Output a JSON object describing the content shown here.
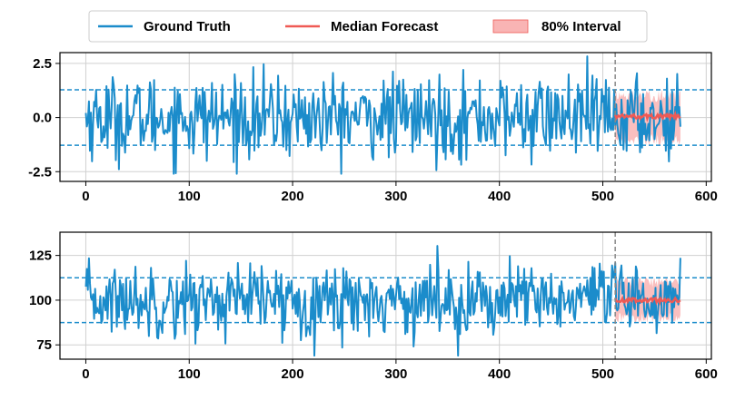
{
  "colors": {
    "ground_truth": "#1b8ccb",
    "median": "#ef5a55",
    "interval_fill": "#f9b4b4",
    "grid": "#d0d0d0",
    "cutoff": "#888888",
    "frame": "#000000"
  },
  "legend": {
    "placement": "top-center",
    "items": [
      {
        "label": "Ground Truth",
        "kind": "line",
        "color": "#1b8ccb"
      },
      {
        "label": "Median Forecast",
        "kind": "line",
        "color": "#ef5a55"
      },
      {
        "label": "80% Interval",
        "kind": "patch",
        "color": "#f9b4b4"
      }
    ]
  },
  "chart_data": [
    {
      "type": "line",
      "title": "",
      "xlabel": "",
      "ylabel": "",
      "xlim": [
        -25,
        605
      ],
      "ylim": [
        -2.95,
        3.0
      ],
      "xticks": [
        0,
        100,
        200,
        300,
        400,
        500,
        600
      ],
      "xtick_labels": [
        "0",
        "100",
        "200",
        "300",
        "400",
        "500",
        "600"
      ],
      "yticks": [
        -2.5,
        0.0,
        2.5
      ],
      "ytick_labels": [
        "-2.5",
        "0.0",
        "2.5"
      ],
      "grid": true,
      "series": [
        {
          "name": "Ground Truth",
          "kind": "line",
          "x_range": [
            0,
            575
          ],
          "mean": 0.0,
          "std": 0.95,
          "min": -2.6,
          "max": 2.85,
          "style": "white-noise"
        },
        {
          "name": "Median Forecast",
          "kind": "line",
          "x_range": [
            512,
            575
          ],
          "mean": 0.05,
          "spread": 0.1
        },
        {
          "name": "80% Interval",
          "kind": "band",
          "x_range": [
            512,
            575
          ],
          "lower": -1.3,
          "upper": 1.3
        }
      ],
      "hlines": [
        1.28,
        -1.28
      ],
      "vline": 512
    },
    {
      "type": "line",
      "title": "",
      "xlabel": "",
      "ylabel": "",
      "xlim": [
        -25,
        605
      ],
      "ylim": [
        67,
        138
      ],
      "xticks": [
        0,
        100,
        200,
        300,
        400,
        500,
        600
      ],
      "xtick_labels": [
        "0",
        "100",
        "200",
        "300",
        "400",
        "500",
        "600"
      ],
      "yticks": [
        75,
        100,
        125
      ],
      "ytick_labels": [
        "75",
        "100",
        "125"
      ],
      "grid": true,
      "series": [
        {
          "name": "Ground Truth",
          "kind": "line",
          "x_range": [
            0,
            575
          ],
          "mean": 100,
          "std": 10,
          "min": 69,
          "max": 134,
          "style": "white-noise"
        },
        {
          "name": "Median Forecast",
          "kind": "line",
          "x_range": [
            512,
            575
          ],
          "mean": 100,
          "spread": 1.2
        },
        {
          "name": "80% Interval",
          "kind": "band",
          "x_range": [
            512,
            575
          ],
          "lower": 87,
          "upper": 113
        }
      ],
      "hlines": [
        112.5,
        87.5
      ],
      "vline": 512
    }
  ]
}
